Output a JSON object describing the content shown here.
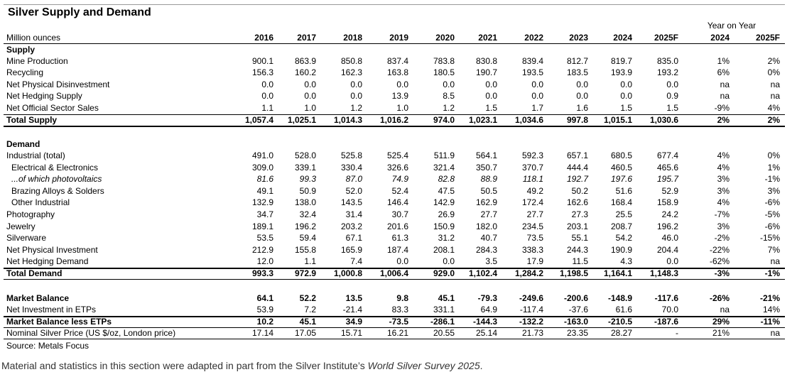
{
  "title": "Silver Supply and Demand",
  "table": {
    "unit_label": "Million ounces",
    "years": [
      "2016",
      "2017",
      "2018",
      "2019",
      "2020",
      "2021",
      "2022",
      "2023",
      "2024",
      "2025F"
    ],
    "yoy_title": "Year on Year",
    "yoy_years": [
      "2024",
      "2025F"
    ],
    "rows": [
      {
        "label": "Supply"
      },
      {
        "label": "Mine Production",
        "values": [
          "900.1",
          "863.9",
          "850.8",
          "837.4",
          "783.8",
          "830.8",
          "839.4",
          "812.7",
          "819.7",
          "835.0"
        ],
        "yoy": [
          "1%",
          "2%"
        ]
      },
      {
        "label": "Recycling",
        "values": [
          "156.3",
          "160.2",
          "162.3",
          "163.8",
          "180.5",
          "190.7",
          "193.5",
          "183.5",
          "193.9",
          "193.2"
        ],
        "yoy": [
          "6%",
          "0%"
        ]
      },
      {
        "label": "Net Physical Disinvestment",
        "values": [
          "0.0",
          "0.0",
          "0.0",
          "0.0",
          "0.0",
          "0.0",
          "0.0",
          "0.0",
          "0.0",
          "0.0"
        ],
        "yoy": [
          "na",
          "na"
        ]
      },
      {
        "label": "Net Hedging Supply",
        "values": [
          "0.0",
          "0.0",
          "0.0",
          "13.9",
          "8.5",
          "0.0",
          "0.0",
          "0.0",
          "0.0",
          "0.9"
        ],
        "yoy": [
          "na",
          "na"
        ]
      },
      {
        "label": "Net Official Sector Sales",
        "values": [
          "1.1",
          "1.0",
          "1.2",
          "1.0",
          "1.2",
          "1.5",
          "1.7",
          "1.6",
          "1.5",
          "1.5"
        ],
        "yoy": [
          "-9%",
          "4%"
        ]
      },
      {
        "label": "Total Supply",
        "values": [
          "1,057.4",
          "1,025.1",
          "1,014.3",
          "1,016.2",
          "974.0",
          "1,023.1",
          "1,034.6",
          "997.8",
          "1,015.1",
          "1,030.6"
        ],
        "yoy": [
          "2%",
          "2%"
        ]
      },
      {
        "label": "Demand"
      },
      {
        "label": "Industrial (total)",
        "values": [
          "491.0",
          "528.0",
          "525.8",
          "525.4",
          "511.9",
          "564.1",
          "592.3",
          "657.1",
          "680.5",
          "677.4"
        ],
        "yoy": [
          "4%",
          "0%"
        ]
      },
      {
        "label": "Electrical & Electronics",
        "values": [
          "309.0",
          "339.1",
          "330.4",
          "326.6",
          "321.4",
          "350.7",
          "370.7",
          "444.4",
          "460.5",
          "465.6"
        ],
        "yoy": [
          "4%",
          "1%"
        ]
      },
      {
        "label": "...of which photovoltaics",
        "values": [
          "81.6",
          "99.3",
          "87.0",
          "74.9",
          "82.8",
          "88.9",
          "118.1",
          "192.7",
          "197.6",
          "195.7"
        ],
        "yoy": [
          "3%",
          "-1%"
        ]
      },
      {
        "label": "Brazing Alloys & Solders",
        "values": [
          "49.1",
          "50.9",
          "52.0",
          "52.4",
          "47.5",
          "50.5",
          "49.2",
          "50.2",
          "51.6",
          "52.9"
        ],
        "yoy": [
          "3%",
          "3%"
        ]
      },
      {
        "label": "Other Industrial",
        "values": [
          "132.9",
          "138.0",
          "143.5",
          "146.4",
          "142.9",
          "162.9",
          "172.4",
          "162.6",
          "168.4",
          "158.9"
        ],
        "yoy": [
          "4%",
          "-6%"
        ]
      },
      {
        "label": "Photography",
        "values": [
          "34.7",
          "32.4",
          "31.4",
          "30.7",
          "26.9",
          "27.7",
          "27.7",
          "27.3",
          "25.5",
          "24.2"
        ],
        "yoy": [
          "-7%",
          "-5%"
        ]
      },
      {
        "label": "Jewelry",
        "values": [
          "189.1",
          "196.2",
          "203.2",
          "201.6",
          "150.9",
          "182.0",
          "234.5",
          "203.1",
          "208.7",
          "196.2"
        ],
        "yoy": [
          "3%",
          "-6%"
        ]
      },
      {
        "label": "Silverware",
        "values": [
          "53.5",
          "59.4",
          "67.1",
          "61.3",
          "31.2",
          "40.7",
          "73.5",
          "55.1",
          "54.2",
          "46.0"
        ],
        "yoy": [
          "-2%",
          "-15%"
        ]
      },
      {
        "label": "Net Physical Investment",
        "values": [
          "212.9",
          "155.8",
          "165.9",
          "187.4",
          "208.1",
          "284.3",
          "338.3",
          "244.3",
          "190.9",
          "204.4"
        ],
        "yoy": [
          "-22%",
          "7%"
        ]
      },
      {
        "label": "Net Hedging Demand",
        "values": [
          "12.0",
          "1.1",
          "7.4",
          "0.0",
          "0.0",
          "3.5",
          "17.9",
          "11.5",
          "4.3",
          "0.0"
        ],
        "yoy": [
          "-62%",
          "na"
        ]
      },
      {
        "label": "Total Demand",
        "values": [
          "993.3",
          "972.9",
          "1,000.8",
          "1,006.4",
          "929.0",
          "1,102.4",
          "1,284.2",
          "1,198.5",
          "1,164.1",
          "1,148.3"
        ],
        "yoy": [
          "-3%",
          "-1%"
        ]
      },
      {
        "label": "Market Balance",
        "values": [
          "64.1",
          "52.2",
          "13.5",
          "9.8",
          "45.1",
          "-79.3",
          "-249.6",
          "-200.6",
          "-148.9",
          "-117.6"
        ],
        "yoy": [
          "-26%",
          "-21%"
        ]
      },
      {
        "label": "Net Investment in ETPs",
        "values": [
          "53.9",
          "7.2",
          "-21.4",
          "83.3",
          "331.1",
          "64.9",
          "-117.4",
          "-37.6",
          "61.6",
          "70.0"
        ],
        "yoy": [
          "na",
          "14%"
        ]
      },
      {
        "label": "Market Balance less ETPs",
        "values": [
          "10.2",
          "45.1",
          "34.9",
          "-73.5",
          "-286.1",
          "-144.3",
          "-132.2",
          "-163.0",
          "-210.5",
          "-187.6"
        ],
        "yoy": [
          "29%",
          "-11%"
        ]
      },
      {
        "label": "Nominal Silver Price (US $/oz, London price)",
        "values": [
          "17.14",
          "17.05",
          "15.71",
          "16.21",
          "20.55",
          "25.14",
          "21.73",
          "23.35",
          "28.27",
          "-"
        ],
        "yoy": [
          "21%",
          "na"
        ]
      }
    ]
  },
  "source": "Source: Metals Focus",
  "footer": {
    "text": "Material and statistics in this section were adapted in part from the Silver Institute’s ",
    "italic": "World Silver Survey 2025",
    "end": "."
  }
}
